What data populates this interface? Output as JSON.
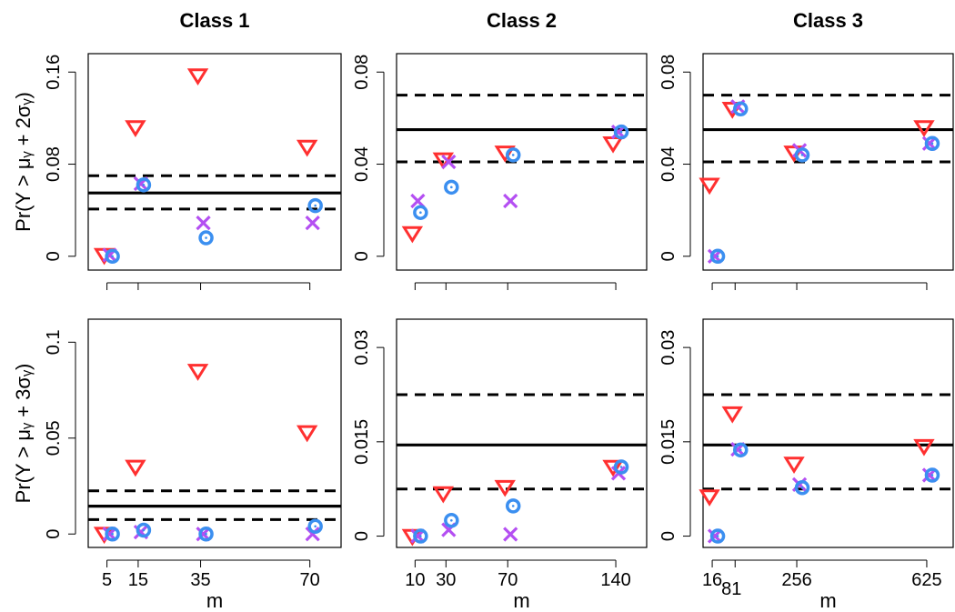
{
  "figure": {
    "colors": {
      "triangle": "#ff3030",
      "cross": "#b44ff2",
      "circle": "#3b8ff0",
      "line": "#000000"
    },
    "xlabel": "m",
    "row_ylabels": [
      "Pr(Y > μᵧ + 2σᵧ)",
      "Pr(Y > μᵧ + 3σᵧ)"
    ]
  },
  "chart_data": [
    {
      "type": "scatter",
      "title": "Class 1",
      "row": 0,
      "col": 0,
      "xlabel": "",
      "ylabel": "Pr(Y > μᵧ + 2σᵧ)",
      "xlim": [
        -1,
        80
      ],
      "ylim": [
        -0.012,
        0.176
      ],
      "xticks": [
        5,
        15,
        35,
        70
      ],
      "xtick_labels": [
        "",
        "",
        "",
        ""
      ],
      "yticks": [
        0,
        0.08,
        0.16
      ],
      "ytick_labels": [
        "0",
        "0.08",
        "0.16"
      ],
      "hlines": {
        "solid": 0.055,
        "dashed": [
          0.07,
          0.041
        ]
      },
      "series": [
        {
          "marker": "triangle",
          "points": [
            [
              5,
              0.001
            ],
            [
              15,
              0.112
            ],
            [
              35,
              0.157
            ],
            [
              70,
              0.095
            ]
          ]
        },
        {
          "marker": "cross",
          "points": [
            [
              5,
              0.001
            ],
            [
              15,
              0.063
            ],
            [
              35,
              0.029
            ],
            [
              70,
              0.029
            ]
          ]
        },
        {
          "marker": "circle",
          "points": [
            [
              5,
              0.0
            ],
            [
              15,
              0.062
            ],
            [
              35,
              0.016
            ],
            [
              70,
              0.044
            ]
          ]
        }
      ]
    },
    {
      "type": "scatter",
      "title": "Class 2",
      "row": 0,
      "col": 1,
      "xlabel": "",
      "ylabel": "",
      "xlim": [
        -2,
        160
      ],
      "ylim": [
        -0.006,
        0.088
      ],
      "xticks": [
        10,
        30,
        70,
        140
      ],
      "xtick_labels": [
        "",
        "",
        "",
        ""
      ],
      "yticks": [
        0,
        0.04,
        0.08
      ],
      "ytick_labels": [
        "0",
        "0.04",
        "0.08"
      ],
      "hlines": {
        "solid": 0.055,
        "dashed": [
          0.07,
          0.041
        ]
      },
      "series": [
        {
          "marker": "triangle",
          "points": [
            [
              10,
              0.01
            ],
            [
              30,
              0.042
            ],
            [
              70,
              0.045
            ],
            [
              140,
              0.049
            ]
          ]
        },
        {
          "marker": "cross",
          "points": [
            [
              10,
              0.024
            ],
            [
              30,
              0.041
            ],
            [
              70,
              0.024
            ],
            [
              140,
              0.054
            ]
          ]
        },
        {
          "marker": "circle",
          "points": [
            [
              10,
              0.019
            ],
            [
              30,
              0.03
            ],
            [
              70,
              0.044
            ],
            [
              140,
              0.054
            ]
          ]
        }
      ]
    },
    {
      "type": "scatter",
      "title": "Class 3",
      "row": 0,
      "col": 2,
      "xlabel": "",
      "ylabel": "",
      "xlim": [
        -10,
        700
      ],
      "ylim": [
        -0.006,
        0.088
      ],
      "xticks": [
        16,
        81,
        256,
        625
      ],
      "xtick_labels": [
        "",
        "",
        "",
        ""
      ],
      "yticks": [
        0,
        0.04,
        0.08
      ],
      "ytick_labels": [
        "0",
        "0.04",
        "0.08"
      ],
      "hlines": {
        "solid": 0.055,
        "dashed": [
          0.07,
          0.041
        ]
      },
      "series": [
        {
          "marker": "triangle",
          "points": [
            [
              16,
              0.031
            ],
            [
              81,
              0.064
            ],
            [
              256,
              0.045
            ],
            [
              625,
              0.056
            ]
          ]
        },
        {
          "marker": "cross",
          "points": [
            [
              16,
              0.0
            ],
            [
              81,
              0.065
            ],
            [
              256,
              0.046
            ],
            [
              625,
              0.049
            ]
          ]
        },
        {
          "marker": "circle",
          "points": [
            [
              16,
              0.0
            ],
            [
              81,
              0.064
            ],
            [
              256,
              0.044
            ],
            [
              625,
              0.049
            ]
          ]
        }
      ]
    },
    {
      "type": "scatter",
      "title": "",
      "row": 1,
      "col": 0,
      "xlabel": "m",
      "ylabel": "Pr(Y > μᵧ + 3σᵧ)",
      "xlim": [
        -1,
        80
      ],
      "ylim": [
        -0.007,
        0.112
      ],
      "xticks": [
        5,
        15,
        35,
        70
      ],
      "xtick_labels": [
        "5",
        "15",
        "35",
        "70"
      ],
      "yticks": [
        0,
        0.05,
        0.1
      ],
      "ytick_labels": [
        "0",
        "0.05",
        "0.1"
      ],
      "hlines": {
        "solid": 0.0145,
        "dashed": [
          0.0225,
          0.0075
        ]
      },
      "series": [
        {
          "marker": "triangle",
          "points": [
            [
              5,
              0.0
            ],
            [
              15,
              0.035
            ],
            [
              35,
              0.085
            ],
            [
              70,
              0.053
            ]
          ]
        },
        {
          "marker": "cross",
          "points": [
            [
              5,
              0.0
            ],
            [
              15,
              0.001
            ],
            [
              35,
              0.0
            ],
            [
              70,
              0.0
            ]
          ]
        },
        {
          "marker": "circle",
          "points": [
            [
              5,
              0.0
            ],
            [
              15,
              0.002
            ],
            [
              35,
              0.0
            ],
            [
              70,
              0.004
            ]
          ]
        }
      ]
    },
    {
      "type": "scatter",
      "title": "",
      "row": 1,
      "col": 1,
      "xlabel": "m",
      "ylabel": "",
      "xlim": [
        -2,
        160
      ],
      "ylim": [
        -0.0018,
        0.0345
      ],
      "xticks": [
        10,
        30,
        70,
        140
      ],
      "xtick_labels": [
        "10",
        "30",
        "70",
        "140"
      ],
      "yticks": [
        0,
        0.015,
        0.03
      ],
      "ytick_labels": [
        "0",
        "0.015",
        "0.03"
      ],
      "hlines": {
        "solid": 0.0145,
        "dashed": [
          0.0225,
          0.0075
        ]
      },
      "series": [
        {
          "marker": "triangle",
          "points": [
            [
              10,
              0.0
            ],
            [
              30,
              0.0068
            ],
            [
              70,
              0.0078
            ],
            [
              140,
              0.011
            ]
          ]
        },
        {
          "marker": "cross",
          "points": [
            [
              10,
              0.0
            ],
            [
              30,
              0.001
            ],
            [
              70,
              0.0003
            ],
            [
              140,
              0.01
            ]
          ]
        },
        {
          "marker": "circle",
          "points": [
            [
              10,
              0.0
            ],
            [
              30,
              0.0025
            ],
            [
              70,
              0.0048
            ],
            [
              140,
              0.011
            ]
          ]
        }
      ]
    },
    {
      "type": "scatter",
      "title": "",
      "row": 1,
      "col": 2,
      "xlabel": "m",
      "ylabel": "",
      "xlim": [
        -10,
        700
      ],
      "ylim": [
        -0.0018,
        0.0345
      ],
      "xticks": [
        16,
        81,
        256,
        625
      ],
      "xtick_labels": [
        "16",
        "81",
        "256",
        "625"
      ],
      "yticks": [
        0,
        0.015,
        0.03
      ],
      "ytick_labels": [
        "0",
        "0.015",
        "0.03"
      ],
      "hlines": {
        "solid": 0.0145,
        "dashed": [
          0.0225,
          0.0075
        ]
      },
      "series": [
        {
          "marker": "triangle",
          "points": [
            [
              16,
              0.0063
            ],
            [
              81,
              0.0195
            ],
            [
              256,
              0.0115
            ],
            [
              625,
              0.0143
            ]
          ]
        },
        {
          "marker": "cross",
          "points": [
            [
              16,
              0.0
            ],
            [
              81,
              0.0138
            ],
            [
              256,
              0.0082
            ],
            [
              625,
              0.0097
            ]
          ]
        },
        {
          "marker": "circle",
          "points": [
            [
              16,
              0.0
            ],
            [
              81,
              0.0137
            ],
            [
              256,
              0.0077
            ],
            [
              625,
              0.0097
            ]
          ]
        }
      ]
    }
  ]
}
